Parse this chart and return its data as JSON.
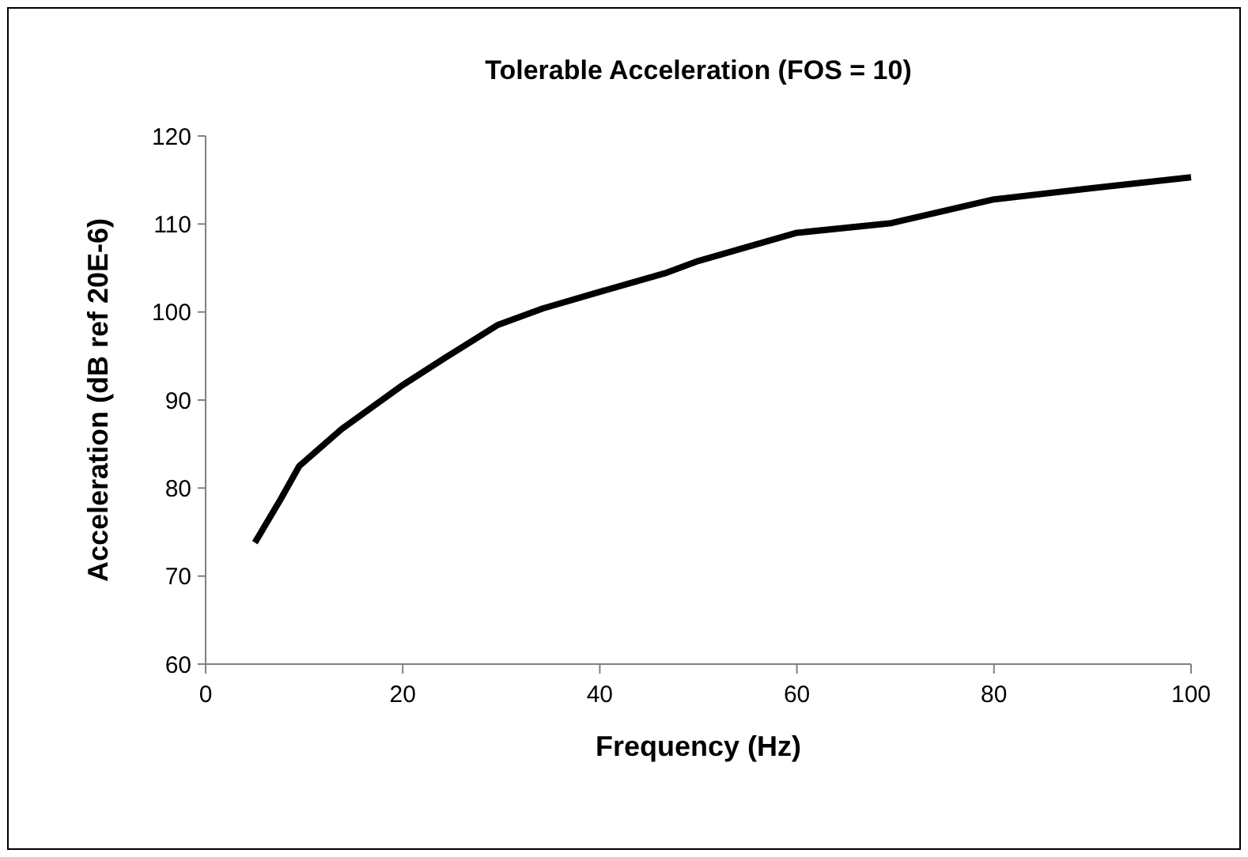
{
  "chart_data": {
    "type": "line",
    "title": "Tolerable Acceleration (FOS = 10)",
    "xlabel": "Frequency (Hz)",
    "ylabel": "Acceleration (dB ref 20E-6)",
    "x": [
      5,
      7.6,
      9.5,
      13.8,
      20,
      24.3,
      29.6,
      34.2,
      40,
      46.6,
      50,
      60,
      69.6,
      80,
      89.4,
      100
    ],
    "series": [
      {
        "color": "#000000",
        "values": [
          73.8,
          78.7,
          82.5,
          86.7,
          91.7,
          94.8,
          98.5,
          100.4,
          102.3,
          104.4,
          105.8,
          109.0,
          110.1,
          112.8,
          114.0,
          115.3
        ]
      }
    ],
    "xlim": [
      0,
      100
    ],
    "xticks": [
      0,
      20,
      40,
      60,
      80,
      100
    ],
    "ylim": [
      60,
      120
    ],
    "yticks": [
      60,
      70,
      80,
      90,
      100,
      110,
      120
    ],
    "grid": false,
    "marker": "none",
    "line_style": "solid"
  }
}
